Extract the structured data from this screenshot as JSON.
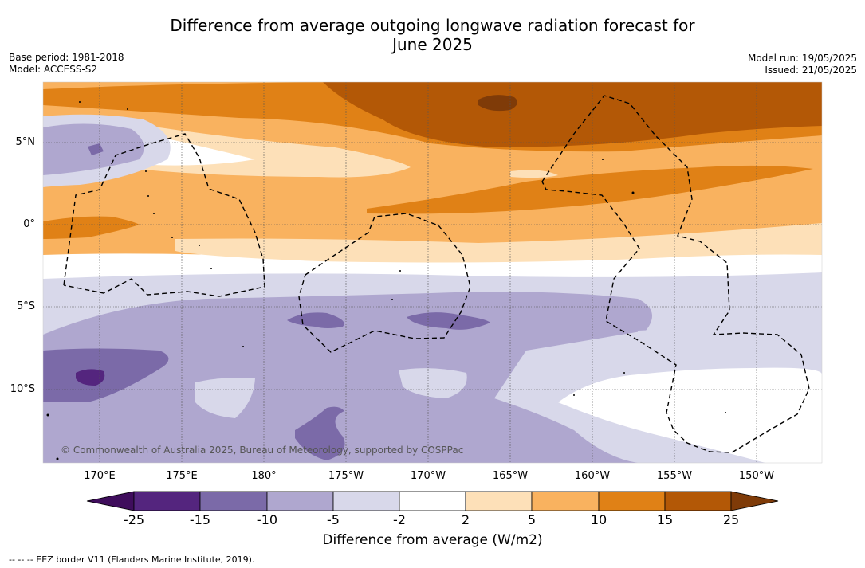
{
  "title_line1": "Difference from average outgoing longwave radiation forecast for",
  "title_line2": "June 2025",
  "base_period": "Base period: 1981-2018",
  "model": "Model: ACCESS-S2",
  "model_run": "Model run: 19/05/2025",
  "issued": "Issued: 21/05/2025",
  "copyright": "© Commonwealth of Australia 2025, Bureau of Meteorology, supported by COSPPac",
  "lon_labels": [
    "170°E",
    "175°E",
    "180°",
    "175°W",
    "170°W",
    "165°W",
    "160°W",
    "155°W",
    "150°W"
  ],
  "lat_labels": [
    "5°N",
    "0°",
    "5°S",
    "10°S"
  ],
  "colorbar": {
    "ticks": [
      "-25",
      "-15",
      "-10",
      "-5",
      "-2",
      "2",
      "5",
      "10",
      "15",
      "25"
    ],
    "label": "Difference from average (W/m2)",
    "colors": [
      "#3f0d5c",
      "#54257e",
      "#7b6aa8",
      "#afa7cf",
      "#d8d8ea",
      "#ffffff",
      "#fde0b8",
      "#f9b25f",
      "#e08116",
      "#b35806",
      "#7f3b08"
    ]
  },
  "eez_legend": "--  --  -- EEZ border V11 (Flanders Marine Institute, 2019)."
}
